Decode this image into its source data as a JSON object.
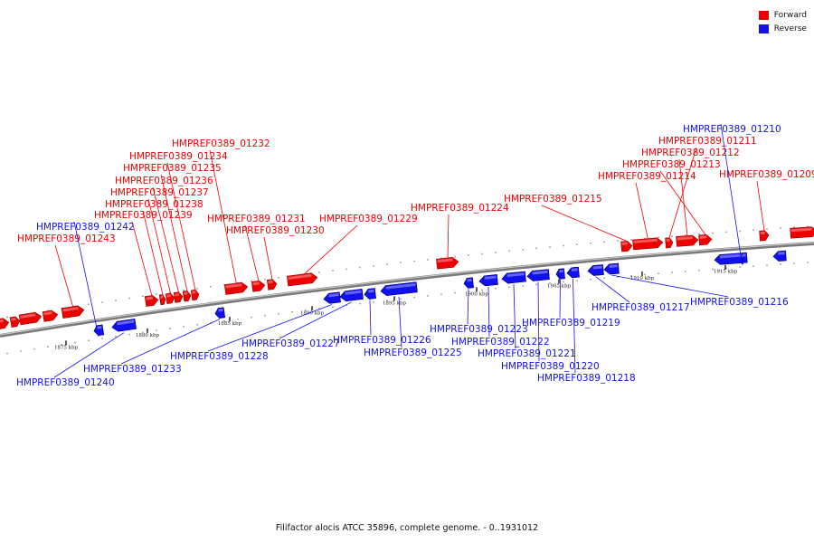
{
  "legend": {
    "forward_label": "Forward",
    "forward_color": "#ee0000",
    "reverse_label": "Reverse",
    "reverse_color": "#1111ee"
  },
  "caption": "Filifactor alocis ATCC 35896, complete genome. - 0..1931012",
  "scale_ticks": [
    "1875 kbp",
    "1880 kbp",
    "1885 kbp",
    "1890 kbp",
    "1895 kbp",
    "1900 kbp",
    "1905 kbp",
    "1910 kbp",
    "1915 kbp"
  ],
  "forward_genes": [
    "HMPREF0389_01232",
    "HMPREF0389_01234",
    "HMPREF0389_01235",
    "HMPREF0389_01236",
    "HMPREF0389_01237",
    "HMPREF0389_01238",
    "HMPREF0389_01239",
    "HMPREF0389_01243",
    "HMPREF0389_01231",
    "HMPREF0389_01230",
    "HMPREF0389_01229",
    "HMPREF0389_01224",
    "HMPREF0389_01215",
    "HMPREF0389_01211",
    "HMPREF0389_01212",
    "HMPREF0389_01213",
    "HMPREF0389_01214",
    "HMPREF0389_01209"
  ],
  "reverse_genes": [
    "HMPREF0389_01210",
    "HMPREF0389_01242",
    "HMPREF0389_01240",
    "HMPREF0389_01233",
    "HMPREF0389_01228",
    "HMPREF0389_01227",
    "HMPREF0389_01226",
    "HMPREF0389_01225",
    "HMPREF0389_01223",
    "HMPREF0389_01222",
    "HMPREF0389_01221",
    "HMPREF0389_01220",
    "HMPREF0389_01218",
    "HMPREF0389_01219",
    "HMPREF0389_01217",
    "HMPREF0389_01216"
  ]
}
